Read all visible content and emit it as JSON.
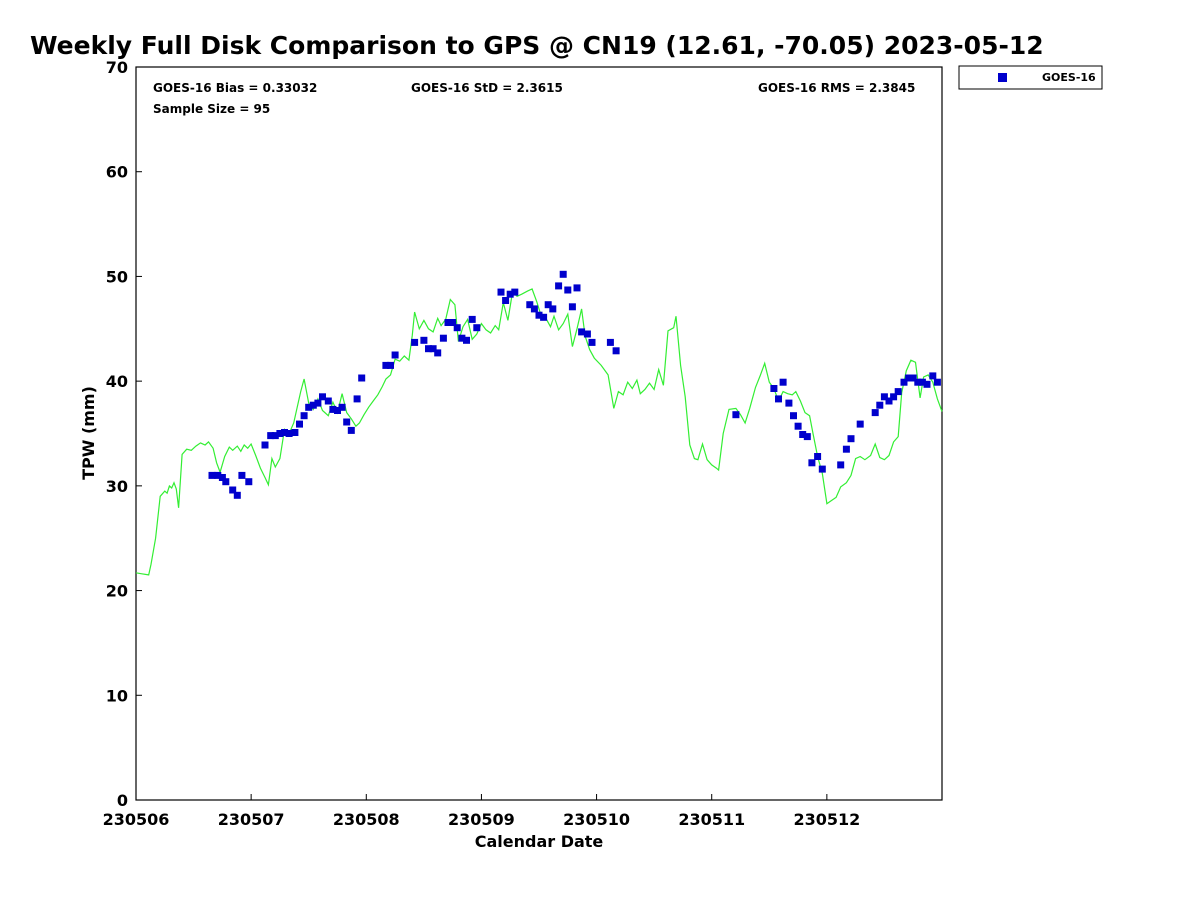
{
  "chart_data": {
    "type": "scatter",
    "title": "Weekly Full Disk Comparison to GPS @ CN19 (12.61, -70.05) 2023-05-12",
    "xlabel": "Calendar Date",
    "ylabel": "TPW (mm)",
    "xlim": [
      "230506",
      "230513"
    ],
    "ylim": [
      0,
      70
    ],
    "yticks": [
      "0",
      "10",
      "20",
      "30",
      "40",
      "50",
      "60",
      "70"
    ],
    "xticks": [
      "230506",
      "230507",
      "230508",
      "230509",
      "230510",
      "230511",
      "230512"
    ],
    "grid": false,
    "legend_position": "top-right",
    "stats": {
      "bias": "GOES-16 Bias = 0.33032",
      "std": "GOES-16 StD = 2.3615",
      "rms": "GOES-16 RMS = 2.3845",
      "sample_size": "Sample Size = 95"
    },
    "series": [
      {
        "name": "GOES-16",
        "kind": "points",
        "color": "#0000cc",
        "points": [
          [
            6.66,
            31.0
          ],
          [
            6.71,
            31.0
          ],
          [
            6.75,
            30.8
          ],
          [
            6.78,
            30.4
          ],
          [
            6.84,
            29.6
          ],
          [
            6.88,
            29.1
          ],
          [
            6.92,
            31.0
          ],
          [
            6.98,
            30.4
          ],
          [
            7.12,
            33.9
          ],
          [
            7.17,
            34.8
          ],
          [
            7.21,
            34.8
          ],
          [
            7.25,
            35.0
          ],
          [
            7.29,
            35.1
          ],
          [
            7.33,
            35.0
          ],
          [
            7.38,
            35.1
          ],
          [
            7.42,
            35.9
          ],
          [
            7.46,
            36.7
          ],
          [
            7.5,
            37.5
          ],
          [
            7.54,
            37.7
          ],
          [
            7.58,
            37.9
          ],
          [
            7.62,
            38.5
          ],
          [
            7.67,
            38.1
          ],
          [
            7.71,
            37.3
          ],
          [
            7.75,
            37.2
          ],
          [
            7.79,
            37.5
          ],
          [
            7.83,
            36.1
          ],
          [
            7.87,
            35.3
          ],
          [
            7.92,
            38.3
          ],
          [
            7.96,
            40.3
          ],
          [
            8.17,
            41.5
          ],
          [
            8.21,
            41.5
          ],
          [
            8.25,
            42.5
          ],
          [
            8.42,
            43.7
          ],
          [
            8.5,
            43.9
          ],
          [
            8.54,
            43.1
          ],
          [
            8.58,
            43.1
          ],
          [
            8.62,
            42.7
          ],
          [
            8.67,
            44.1
          ],
          [
            8.71,
            45.6
          ],
          [
            8.75,
            45.6
          ],
          [
            8.79,
            45.1
          ],
          [
            8.83,
            44.1
          ],
          [
            8.87,
            43.9
          ],
          [
            8.92,
            45.9
          ],
          [
            8.96,
            45.1
          ],
          [
            9.17,
            48.5
          ],
          [
            9.21,
            47.7
          ],
          [
            9.25,
            48.3
          ],
          [
            9.29,
            48.5
          ],
          [
            9.42,
            47.3
          ],
          [
            9.46,
            46.9
          ],
          [
            9.5,
            46.3
          ],
          [
            9.54,
            46.1
          ],
          [
            9.58,
            47.3
          ],
          [
            9.62,
            46.9
          ],
          [
            9.67,
            49.1
          ],
          [
            9.71,
            50.2
          ],
          [
            9.75,
            48.7
          ],
          [
            9.79,
            47.1
          ],
          [
            9.83,
            48.9
          ],
          [
            9.87,
            44.7
          ],
          [
            9.92,
            44.5
          ],
          [
            9.96,
            43.7
          ],
          [
            10.12,
            43.7
          ],
          [
            10.17,
            42.9
          ],
          [
            11.21,
            36.8
          ],
          [
            11.54,
            39.3
          ],
          [
            11.58,
            38.3
          ],
          [
            11.62,
            39.9
          ],
          [
            11.67,
            37.9
          ],
          [
            11.71,
            36.7
          ],
          [
            11.75,
            35.7
          ],
          [
            11.79,
            34.9
          ],
          [
            11.83,
            34.7
          ],
          [
            11.87,
            32.2
          ],
          [
            11.92,
            32.8
          ],
          [
            11.96,
            31.6
          ],
          [
            12.12,
            32.0
          ],
          [
            12.17,
            33.5
          ],
          [
            12.21,
            34.5
          ],
          [
            12.29,
            35.9
          ],
          [
            12.42,
            37.0
          ],
          [
            12.46,
            37.7
          ],
          [
            12.5,
            38.5
          ],
          [
            12.54,
            38.1
          ],
          [
            12.58,
            38.5
          ],
          [
            12.62,
            39.0
          ],
          [
            12.67,
            39.9
          ],
          [
            12.71,
            40.3
          ],
          [
            12.75,
            40.3
          ],
          [
            12.79,
            39.9
          ],
          [
            12.83,
            39.9
          ],
          [
            12.87,
            39.7
          ],
          [
            12.92,
            40.5
          ],
          [
            12.96,
            39.9
          ]
        ]
      },
      {
        "name": "",
        "kind": "line",
        "color": "#33ee33",
        "points": [
          [
            6.0,
            21.7
          ],
          [
            6.05,
            21.6
          ],
          [
            6.11,
            21.5
          ],
          [
            6.13,
            22.5
          ],
          [
            6.17,
            25.0
          ],
          [
            6.21,
            29.0
          ],
          [
            6.25,
            29.5
          ],
          [
            6.27,
            29.3
          ],
          [
            6.29,
            30.0
          ],
          [
            6.31,
            29.8
          ],
          [
            6.33,
            30.3
          ],
          [
            6.35,
            29.7
          ],
          [
            6.37,
            27.9
          ],
          [
            6.4,
            33.0
          ],
          [
            6.44,
            33.5
          ],
          [
            6.48,
            33.4
          ],
          [
            6.52,
            33.8
          ],
          [
            6.56,
            34.1
          ],
          [
            6.6,
            33.9
          ],
          [
            6.63,
            34.2
          ],
          [
            6.67,
            33.6
          ],
          [
            6.7,
            32.2
          ],
          [
            6.73,
            31.3
          ],
          [
            6.77,
            32.8
          ],
          [
            6.81,
            33.7
          ],
          [
            6.84,
            33.4
          ],
          [
            6.88,
            33.8
          ],
          [
            6.91,
            33.3
          ],
          [
            6.94,
            33.9
          ],
          [
            6.97,
            33.6
          ],
          [
            7.0,
            34.0
          ],
          [
            7.04,
            32.9
          ],
          [
            7.08,
            31.7
          ],
          [
            7.12,
            30.8
          ],
          [
            7.15,
            30.1
          ],
          [
            7.18,
            32.6
          ],
          [
            7.21,
            31.8
          ],
          [
            7.25,
            32.6
          ],
          [
            7.29,
            35.4
          ],
          [
            7.33,
            35.0
          ],
          [
            7.37,
            36.0
          ],
          [
            7.4,
            37.5
          ],
          [
            7.43,
            39.0
          ],
          [
            7.46,
            40.2
          ],
          [
            7.5,
            37.9
          ],
          [
            7.54,
            37.3
          ],
          [
            7.58,
            38.3
          ],
          [
            7.62,
            37.2
          ],
          [
            7.67,
            36.7
          ],
          [
            7.71,
            38.0
          ],
          [
            7.75,
            37.0
          ],
          [
            7.79,
            38.8
          ],
          [
            7.83,
            37.0
          ],
          [
            7.87,
            36.4
          ],
          [
            7.91,
            35.7
          ],
          [
            7.94,
            36.0
          ],
          [
            7.98,
            36.8
          ],
          [
            8.02,
            37.5
          ],
          [
            8.06,
            38.1
          ],
          [
            8.1,
            38.7
          ],
          [
            8.14,
            39.5
          ],
          [
            8.17,
            40.2
          ],
          [
            8.21,
            40.6
          ],
          [
            8.25,
            42.1
          ],
          [
            8.29,
            41.9
          ],
          [
            8.33,
            42.4
          ],
          [
            8.37,
            42.0
          ],
          [
            8.4,
            44.4
          ],
          [
            8.42,
            46.6
          ],
          [
            8.46,
            45.0
          ],
          [
            8.5,
            45.8
          ],
          [
            8.54,
            45.0
          ],
          [
            8.58,
            44.7
          ],
          [
            8.62,
            46.0
          ],
          [
            8.65,
            45.3
          ],
          [
            8.69,
            45.9
          ],
          [
            8.73,
            47.8
          ],
          [
            8.77,
            47.3
          ],
          [
            8.8,
            43.8
          ],
          [
            8.84,
            45.2
          ],
          [
            8.88,
            45.9
          ],
          [
            8.92,
            44.0
          ],
          [
            8.96,
            44.5
          ],
          [
            9.0,
            45.5
          ],
          [
            9.04,
            44.9
          ],
          [
            9.08,
            44.6
          ],
          [
            9.12,
            45.3
          ],
          [
            9.15,
            44.9
          ],
          [
            9.19,
            47.5
          ],
          [
            9.23,
            45.8
          ],
          [
            9.27,
            48.5
          ],
          [
            9.31,
            48.1
          ],
          [
            9.35,
            48.3
          ],
          [
            9.4,
            48.6
          ],
          [
            9.44,
            48.8
          ],
          [
            9.48,
            47.6
          ],
          [
            9.52,
            46.2
          ],
          [
            9.56,
            46.0
          ],
          [
            9.6,
            45.2
          ],
          [
            9.63,
            46.2
          ],
          [
            9.67,
            44.9
          ],
          [
            9.71,
            45.5
          ],
          [
            9.75,
            46.4
          ],
          [
            9.79,
            43.3
          ],
          [
            9.83,
            45.0
          ],
          [
            9.87,
            46.9
          ],
          [
            9.9,
            44.3
          ],
          [
            9.94,
            43.0
          ],
          [
            9.98,
            42.2
          ],
          [
            10.04,
            41.5
          ],
          [
            10.1,
            40.6
          ],
          [
            10.15,
            37.4
          ],
          [
            10.19,
            39.0
          ],
          [
            10.23,
            38.7
          ],
          [
            10.27,
            39.9
          ],
          [
            10.31,
            39.3
          ],
          [
            10.35,
            40.1
          ],
          [
            10.38,
            38.8
          ],
          [
            10.42,
            39.2
          ],
          [
            10.46,
            39.8
          ],
          [
            10.5,
            39.2
          ],
          [
            10.54,
            41.1
          ],
          [
            10.58,
            39.6
          ],
          [
            10.62,
            44.8
          ],
          [
            10.67,
            45.1
          ],
          [
            10.69,
            46.2
          ],
          [
            10.73,
            41.5
          ],
          [
            10.77,
            38.5
          ],
          [
            10.81,
            33.9
          ],
          [
            10.85,
            32.6
          ],
          [
            10.88,
            32.5
          ],
          [
            10.92,
            34.0
          ],
          [
            10.96,
            32.5
          ],
          [
            11.0,
            32.0
          ],
          [
            11.04,
            31.7
          ],
          [
            11.06,
            31.5
          ],
          [
            11.1,
            35.0
          ],
          [
            11.15,
            37.3
          ],
          [
            11.21,
            37.4
          ],
          [
            11.25,
            36.8
          ],
          [
            11.29,
            36.0
          ],
          [
            11.33,
            37.4
          ],
          [
            11.38,
            39.4
          ],
          [
            11.42,
            40.5
          ],
          [
            11.46,
            41.7
          ],
          [
            11.5,
            39.9
          ],
          [
            11.54,
            39.3
          ],
          [
            11.58,
            38.1
          ],
          [
            11.62,
            39.0
          ],
          [
            11.66,
            38.8
          ],
          [
            11.7,
            38.7
          ],
          [
            11.73,
            39.0
          ],
          [
            11.77,
            38.1
          ],
          [
            11.81,
            37.0
          ],
          [
            11.85,
            36.7
          ],
          [
            11.88,
            35.0
          ],
          [
            11.92,
            32.8
          ],
          [
            11.96,
            31.2
          ],
          [
            12.0,
            28.3
          ],
          [
            12.04,
            28.6
          ],
          [
            12.08,
            28.9
          ],
          [
            12.12,
            29.9
          ],
          [
            12.17,
            30.3
          ],
          [
            12.21,
            31.0
          ],
          [
            12.25,
            32.6
          ],
          [
            12.29,
            32.8
          ],
          [
            12.33,
            32.5
          ],
          [
            12.38,
            32.9
          ],
          [
            12.42,
            34.0
          ],
          [
            12.46,
            32.7
          ],
          [
            12.5,
            32.5
          ],
          [
            12.54,
            32.9
          ],
          [
            12.58,
            34.2
          ],
          [
            12.62,
            34.7
          ],
          [
            12.65,
            38.9
          ],
          [
            12.69,
            41.0
          ],
          [
            12.73,
            42.0
          ],
          [
            12.77,
            41.8
          ],
          [
            12.81,
            38.4
          ],
          [
            12.84,
            40.4
          ],
          [
            12.88,
            40.6
          ],
          [
            12.92,
            39.9
          ],
          [
            12.96,
            38.3
          ],
          [
            13.0,
            37.1
          ]
        ]
      }
    ]
  }
}
